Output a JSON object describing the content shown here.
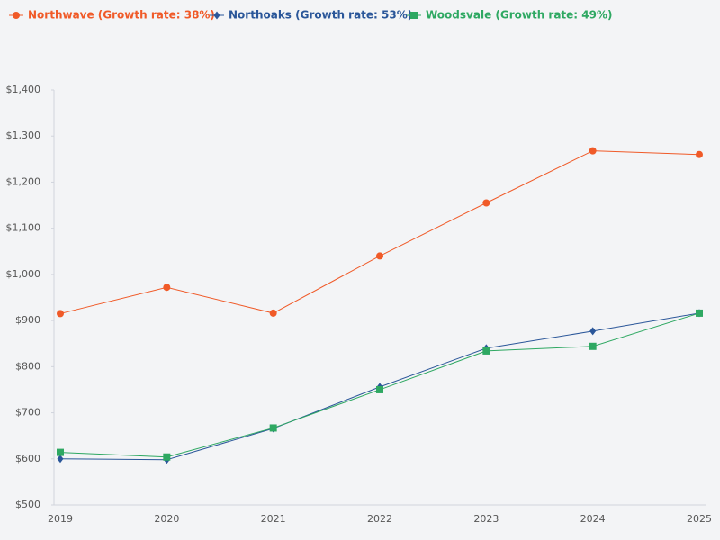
{
  "chart_data": {
    "type": "line",
    "categories": [
      "2019",
      "2020",
      "2021",
      "2022",
      "2023",
      "2024",
      "2025"
    ],
    "series": [
      {
        "name": "Northwave (Growth rate: 38%)",
        "color": "#f05a28",
        "marker": "circle",
        "values": [
          915,
          972,
          916,
          1040,
          1155,
          1268,
          1260
        ]
      },
      {
        "name": "Northoaks (Growth rate: 53%)",
        "color": "#2a5699",
        "marker": "diamond",
        "values": [
          600,
          598,
          666,
          756,
          840,
          877,
          916
        ]
      },
      {
        "name": "Woodsvale (Growth rate: 49%)",
        "color": "#2ea862",
        "marker": "square",
        "values": [
          614,
          604,
          667,
          750,
          834,
          844,
          916
        ]
      }
    ],
    "ylim": [
      500,
      1400
    ],
    "yticks": [
      {
        "value": 500,
        "label": "$500"
      },
      {
        "value": 600,
        "label": "$600"
      },
      {
        "value": 700,
        "label": "$700"
      },
      {
        "value": 800,
        "label": "$800"
      },
      {
        "value": 900,
        "label": "$900"
      },
      {
        "value": 1000,
        "label": "$1,000"
      },
      {
        "value": 1100,
        "label": "$1,100"
      },
      {
        "value": 1200,
        "label": "$1,200"
      },
      {
        "value": 1300,
        "label": "$1,300"
      },
      {
        "value": 1400,
        "label": "$1,400"
      }
    ],
    "grid": false
  }
}
